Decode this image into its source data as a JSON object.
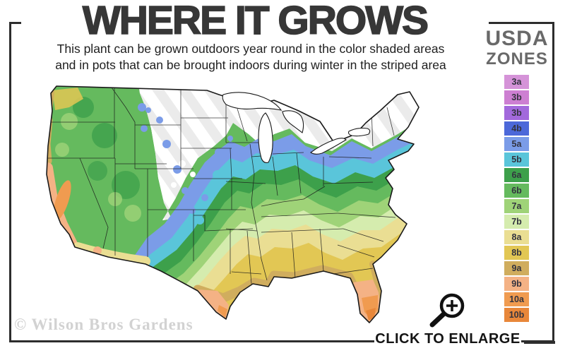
{
  "title": "WHERE IT GROWS",
  "subtitle": {
    "line1": "This plant can be grown outdoors year round in the color shaded areas",
    "line2": "and in pots that can be brought indoors during winter in the striped area"
  },
  "legend": {
    "heading_line1": "USDA",
    "heading_line2": "ZONES",
    "zones": [
      {
        "label": "3a",
        "color": "#d593d8"
      },
      {
        "label": "3b",
        "color": "#cd7fd2"
      },
      {
        "label": "3b",
        "color": "#a269dc"
      },
      {
        "label": "4b",
        "color": "#4c68d9"
      },
      {
        "label": "5a",
        "color": "#7b9ce8"
      },
      {
        "label": "5b",
        "color": "#5ac5da"
      },
      {
        "label": "6a",
        "color": "#3da04b"
      },
      {
        "label": "6b",
        "color": "#65ba5e"
      },
      {
        "label": "7a",
        "color": "#9fd378"
      },
      {
        "label": "7b",
        "color": "#d5ecae"
      },
      {
        "label": "8a",
        "color": "#eade93"
      },
      {
        "label": "8b",
        "color": "#e2c754"
      },
      {
        "label": "9a",
        "color": "#d0ad5e"
      },
      {
        "label": "9b",
        "color": "#f4b285"
      },
      {
        "label": "10a",
        "color": "#f09b50"
      },
      {
        "label": "10b",
        "color": "#e8873a"
      }
    ]
  },
  "map": {
    "alt": "USDA plant hardiness zones map of the continental United States with a striped no-grow area in the northern plains"
  },
  "watermark": "© Wilson Bros Gardens",
  "enlarge": {
    "label": "CLICK TO ENLARGE",
    "icon": "magnifier-plus-icon"
  },
  "colors": {
    "frame_border": "#2d2d2d",
    "title_text": "#373737",
    "legend_heading": "#696969",
    "watermark_text": "#d2d2d2"
  }
}
